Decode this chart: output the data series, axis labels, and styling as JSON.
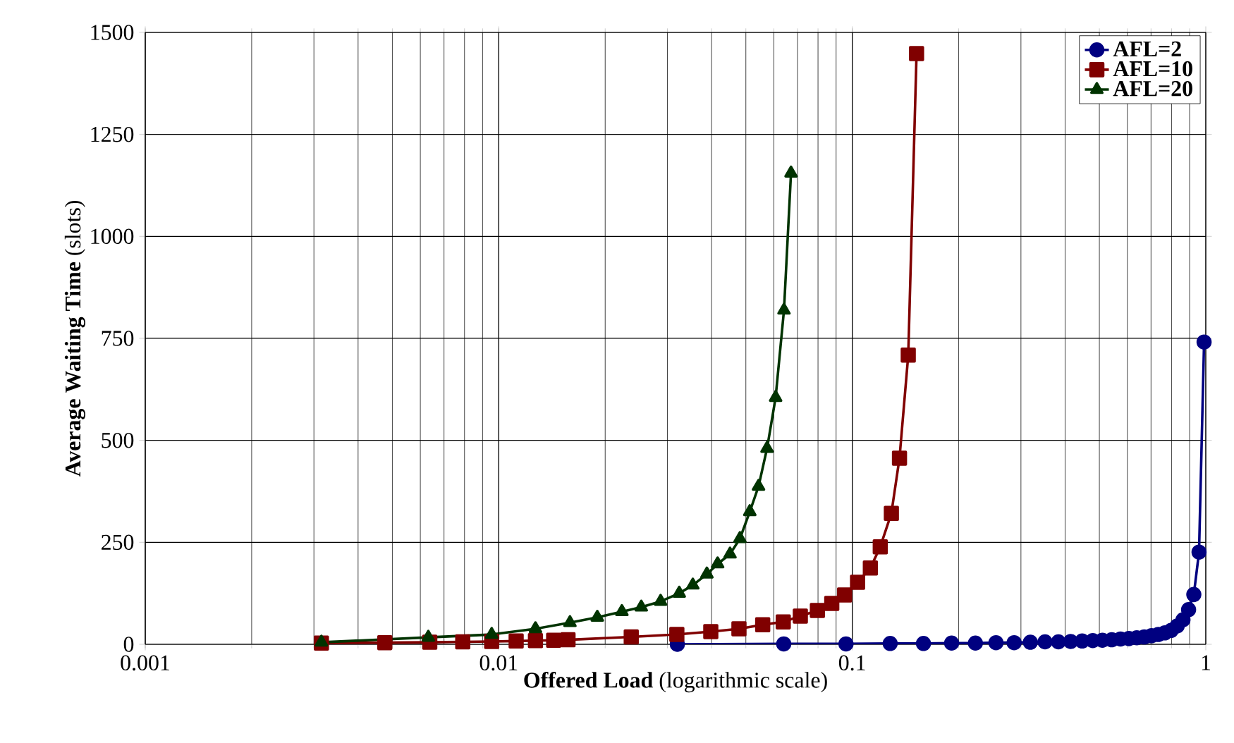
{
  "chart_data": {
    "type": "line",
    "xlabel": "**Offered Load** (logarithmic scale)",
    "ylabel": "**Average Waiting Time** (slots)",
    "log": "x",
    "grid": true,
    "legend": "top right",
    "xlim": [
      0.001,
      1
    ],
    "xticks": [
      0.001,
      0.01,
      0.1,
      1
    ],
    "ylim": [
      0,
      1500
    ],
    "yticks": [
      0,
      250,
      500,
      750,
      1000,
      1250,
      1500
    ],
    "series": [
      {
        "name": "AFL=2",
        "color": "#000080",
        "marker": "circle",
        "x": [
          0.032,
          0.064,
          0.096,
          0.128,
          0.159,
          0.191,
          0.223,
          0.255,
          0.287,
          0.319,
          0.351,
          0.383,
          0.415,
          0.447,
          0.479,
          0.51,
          0.542,
          0.574,
          0.606,
          0.638,
          0.67,
          0.702,
          0.734,
          0.766,
          0.798,
          0.83,
          0.862,
          0.894,
          0.925,
          0.957,
          0.989
        ],
        "values": [
          0,
          1,
          1,
          2,
          2,
          3,
          3,
          4,
          4,
          5,
          6,
          6,
          7,
          8,
          9,
          10,
          11,
          13,
          14,
          16,
          18,
          21,
          24,
          28,
          34,
          45,
          60,
          85,
          122,
          226,
          741
        ]
      },
      {
        "name": "AFL=10",
        "color": "#800000",
        "marker": "square",
        "x": [
          0.00315,
          0.00476,
          0.00638,
          0.00791,
          0.00955,
          0.0112,
          0.0127,
          0.0143,
          0.0157,
          0.0237,
          0.0319,
          0.0398,
          0.0478,
          0.0558,
          0.0638,
          0.0713,
          0.0797,
          0.0875,
          0.0951,
          0.1035,
          0.1125,
          0.12,
          0.129,
          0.136,
          0.144,
          0.152
        ],
        "values": [
          3,
          4,
          5,
          6,
          7,
          8,
          9,
          10,
          11,
          18,
          24,
          31,
          38,
          48,
          55,
          69,
          83,
          100,
          121,
          152,
          187,
          239,
          321,
          456,
          709,
          1448
        ]
      },
      {
        "name": "AFL=20",
        "color": "#003300",
        "marker": "triangle",
        "x": [
          0.00315,
          0.00632,
          0.00955,
          0.0127,
          0.0159,
          0.019,
          0.0223,
          0.0253,
          0.0287,
          0.0324,
          0.0354,
          0.0388,
          0.0416,
          0.0451,
          0.0481,
          0.0513,
          0.0543,
          0.0574,
          0.0607,
          0.0641,
          0.0671
        ],
        "values": [
          5,
          17,
          24,
          38,
          53,
          66,
          80,
          91,
          105,
          125,
          145,
          172,
          197,
          221,
          259,
          325,
          387,
          480,
          605,
          819,
          1155
        ]
      }
    ]
  }
}
